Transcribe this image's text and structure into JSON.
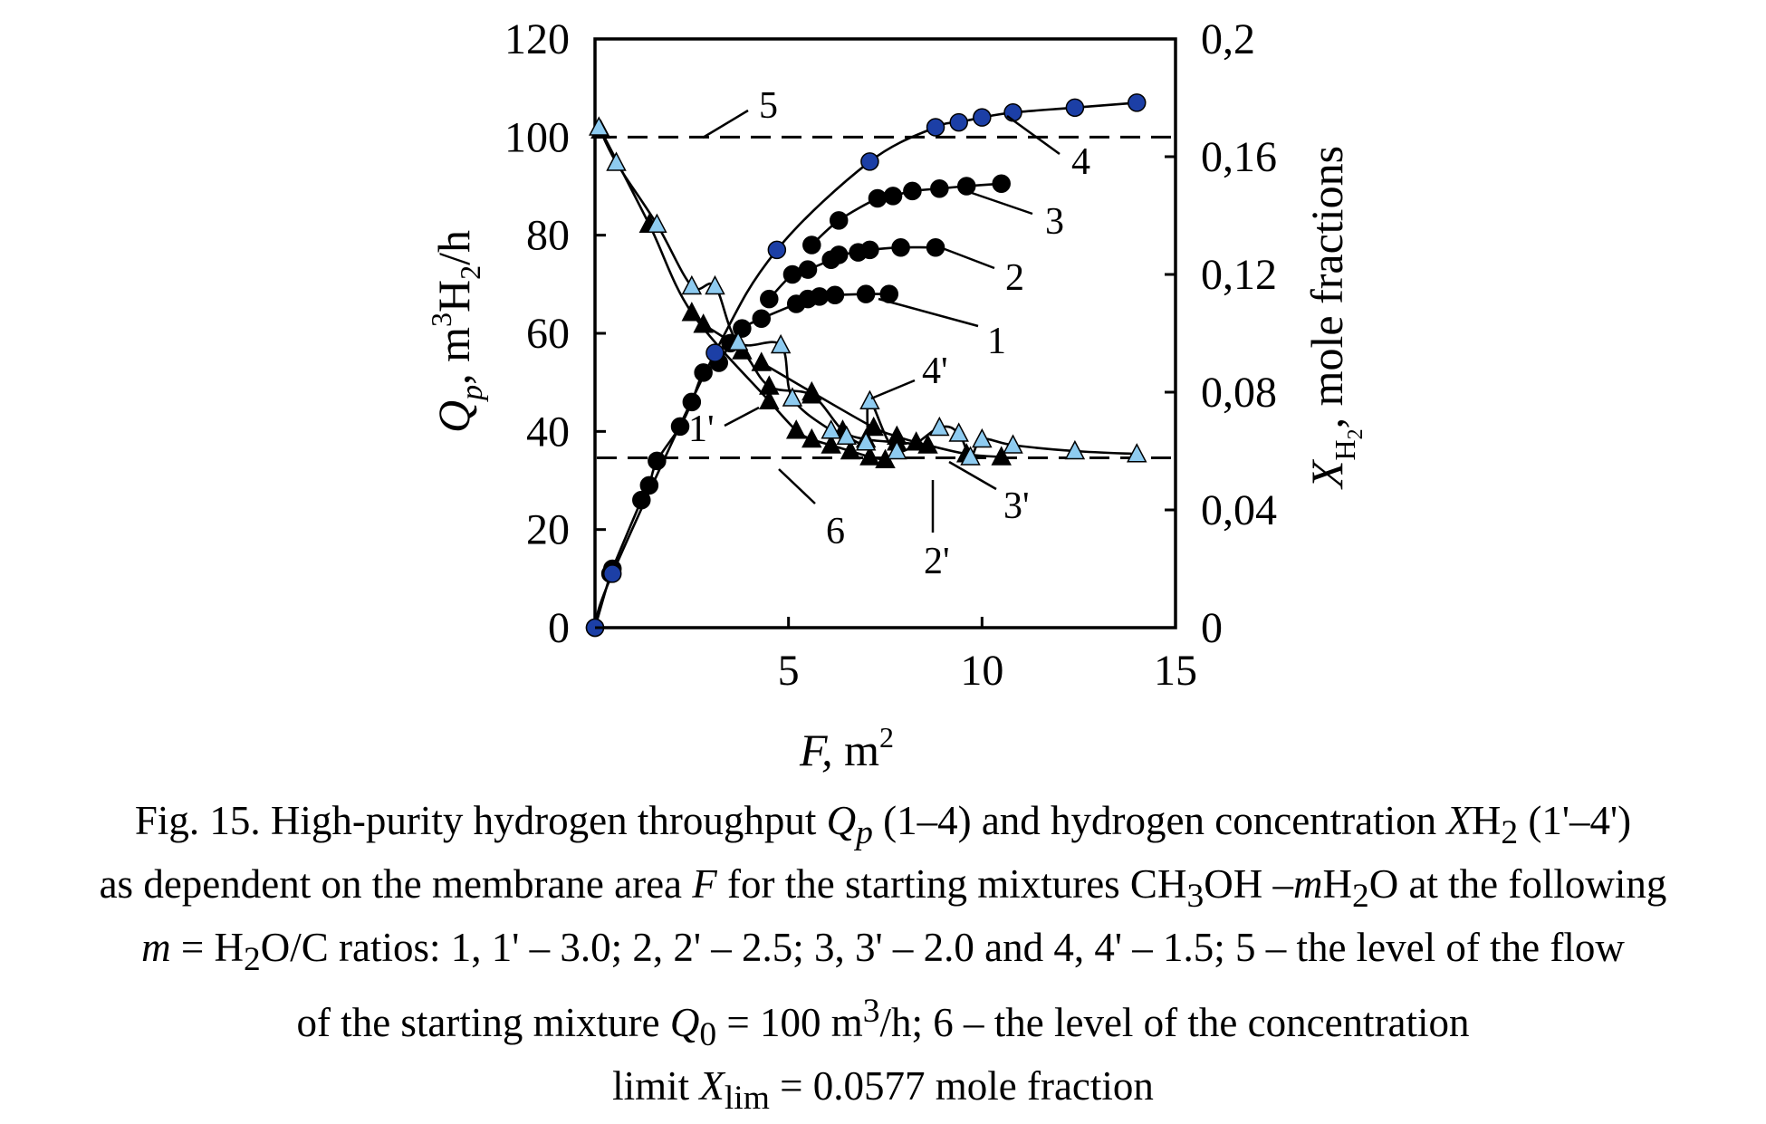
{
  "chart_data": {
    "type": "scatter",
    "title": "",
    "xlabel": {
      "var": "F,",
      "unit": " m",
      "sup": "2"
    },
    "ylabel_left": {
      "var": "Q",
      "sub": "p",
      "rest": ", m",
      "sup": "3",
      "rest2": "H",
      "sub2": "2",
      "rest3": "/h"
    },
    "ylabel_right": {
      "var": "X",
      "sub": "H",
      "subsub": "2",
      "rest": ", mole fractions"
    },
    "xlim": [
      0,
      15
    ],
    "ylim_left": [
      0,
      120
    ],
    "ylim_right": [
      0,
      0.2
    ],
    "x_ticks": [
      "5",
      "10",
      "15"
    ],
    "x_tick_values": [
      5,
      10,
      15
    ],
    "y_left_ticks": [
      "0",
      "20",
      "40",
      "60",
      "80",
      "100",
      "120"
    ],
    "y_left_tick_values": [
      0,
      20,
      40,
      60,
      80,
      100,
      120
    ],
    "y_right_ticks": [
      "0",
      "0,04",
      "0,08",
      "0,12",
      "0,16",
      "0,2"
    ],
    "y_right_tick_values": [
      0,
      0.04,
      0.08,
      0.12,
      0.16,
      0.2
    ],
    "reference_lines": [
      {
        "label": "5",
        "axis": "left",
        "y": 100
      },
      {
        "label": "6",
        "axis": "right",
        "y": 0.0577
      }
    ],
    "series": [
      {
        "name": "1",
        "axis": "left",
        "marker": "circle",
        "color": "#000000",
        "x": [
          0,
          0.4,
          0.45,
          1.2,
          1.4,
          1.6,
          2.2,
          2.5,
          2.8,
          3.2,
          3.5,
          3.8,
          4.3,
          5.2,
          5.5,
          5.8,
          6.2,
          7.0,
          7.6
        ],
        "y": [
          0,
          11,
          12,
          26,
          29,
          34,
          41,
          46,
          52,
          54,
          58,
          61,
          63,
          66,
          67,
          67.5,
          67.8,
          68,
          68
        ]
      },
      {
        "name": "2",
        "axis": "left",
        "marker": "circle",
        "color": "#000000",
        "x": [
          4.5,
          5.1,
          5.5,
          6.1,
          6.3,
          6.8,
          7.1,
          7.9,
          8.8
        ],
        "y": [
          67,
          72,
          73,
          75,
          76,
          76.5,
          77,
          77.5,
          77.5
        ]
      },
      {
        "name": "3",
        "axis": "left",
        "marker": "circle",
        "color": "#000000",
        "x": [
          5.6,
          6.3,
          7.3,
          7.7,
          8.2,
          8.9,
          9.6,
          10.5
        ],
        "y": [
          78,
          83,
          87.5,
          88,
          89,
          89.5,
          90,
          90.5
        ]
      },
      {
        "name": "4",
        "axis": "left",
        "marker": "circle",
        "color": "#1c3fa6",
        "x": [
          0,
          0.45,
          3.1,
          4.7,
          7.1,
          8.8,
          9.4,
          10.0,
          10.8,
          12.4,
          14.0
        ],
        "y": [
          0,
          11,
          56,
          77,
          95,
          102,
          103,
          104,
          105,
          106,
          107
        ]
      },
      {
        "name": "1'",
        "axis": "right",
        "marker": "triangle",
        "color": "#000000",
        "x": [
          0.15,
          1.4,
          2.5,
          4.5,
          5.2,
          5.6,
          6.1,
          6.6,
          7.1,
          7.5
        ],
        "y": [
          0.169,
          0.137,
          0.107,
          0.077,
          0.067,
          0.064,
          0.062,
          0.06,
          0.058,
          0.057
        ]
      },
      {
        "name": "2'",
        "axis": "right",
        "marker": "triangle",
        "color": "#000000",
        "x": [
          2.8,
          3.8,
          4.5,
          5.6,
          6.4,
          7.0,
          7.8,
          8.6
        ],
        "y": [
          0.103,
          0.094,
          0.082,
          0.079,
          0.067,
          0.064,
          0.063,
          0.062
        ]
      },
      {
        "name": "3'",
        "axis": "right",
        "marker": "triangle",
        "color": "#000000",
        "x": [
          4.3,
          5.6,
          7.2,
          7.8,
          8.3,
          9.6,
          10.5
        ],
        "y": [
          0.09,
          0.08,
          0.068,
          0.065,
          0.063,
          0.059,
          0.058
        ]
      },
      {
        "name": "4'",
        "axis": "right",
        "marker": "triangle",
        "color": "#8ecbf0",
        "x": [
          0.1,
          0.55,
          1.6,
          2.5,
          3.1,
          3.7,
          4.8,
          5.1,
          6.1,
          6.5,
          7.0,
          7.8,
          8.9,
          9.4,
          10.0,
          10.8,
          12.4,
          14.0,
          7.1,
          9.7
        ],
        "y": [
          0.17,
          0.158,
          0.137,
          0.116,
          0.116,
          0.097,
          0.096,
          0.078,
          0.067,
          0.065,
          0.063,
          0.06,
          0.068,
          0.066,
          0.064,
          0.062,
          0.06,
          0.059,
          0.077,
          0.058
        ]
      }
    ]
  },
  "caption": {
    "l1a": "Fig. 15. High-purity hydrogen throughput ",
    "l1q": "Q",
    "l1qs": "p",
    "l1b": " (1–4) and hydrogen concentration ",
    "l1x": "X",
    "l1c": "H",
    "l1cs": "2",
    "l1d": " (1'–4')",
    "l2a": "as dependent on the membrane area ",
    "l2f": "F",
    "l2b": " for the starting mixtures CH",
    "l2bs": "3",
    "l2c": "OH –",
    "l2m": "m",
    "l2d": "H",
    "l2ds": "2",
    "l2e": "O at the following",
    "l3m": "m",
    "l3a": " = H",
    "l3as": "2",
    "l3b": "O/C ratios: 1, 1' – 3.0; 2, 2' – 2.5; 3, 3' – 2.0 and 4, 4' – 1.5; 5 – the level of the flow",
    "l4a": "of the starting mixture ",
    "l4q": "Q",
    "l4qs": "0",
    "l4b": " = 100 m",
    "l4bs": "3",
    "l4c": "/h; 6 – the level of the concentration",
    "l5a": "limit ",
    "l5x": "X",
    "l5xs": "lim",
    "l5b": " = 0.0577 mole fraction"
  }
}
